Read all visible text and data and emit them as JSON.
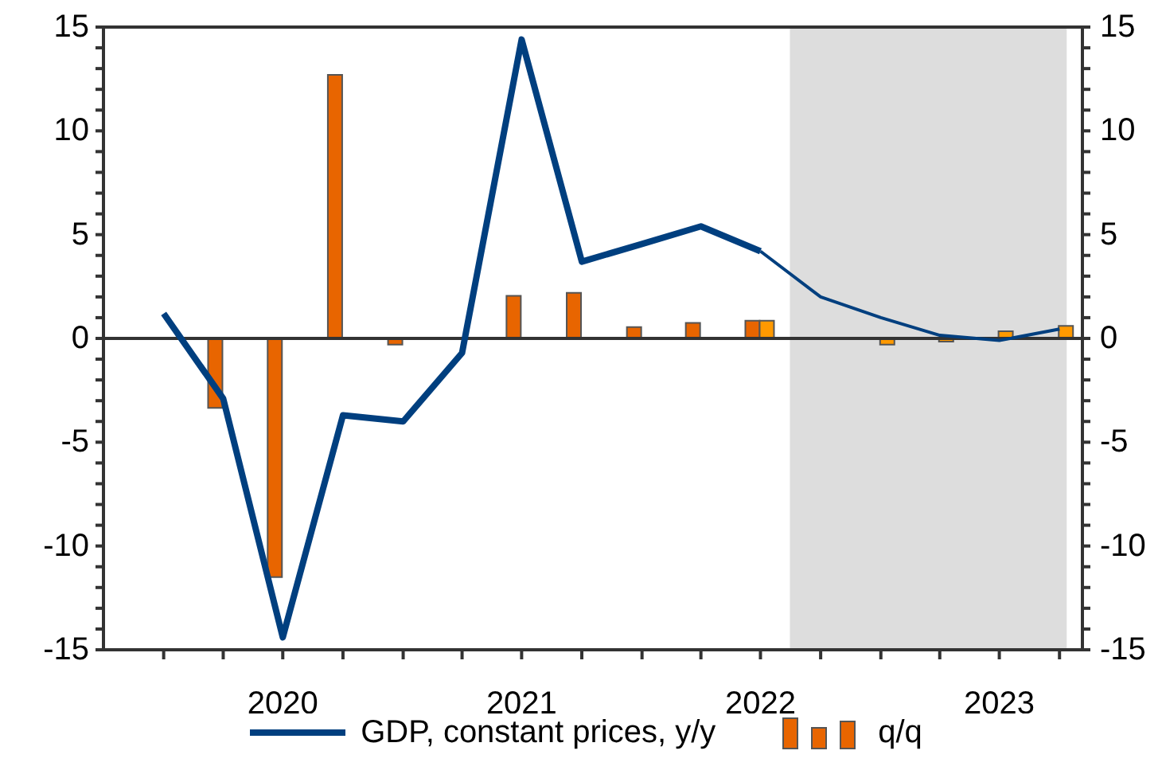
{
  "chart_data": {
    "type": "bar",
    "x": [
      "2020-01",
      "2020-04",
      "2020-07",
      "2020-10",
      "2021-01",
      "2021-04",
      "2021-07",
      "2021-10",
      "2022-01",
      "2022-04",
      "2022-07",
      "2022-10",
      "2023-01",
      "2023-04",
      "2023-07",
      "2023-10"
    ],
    "series": [
      {
        "type": "line",
        "name": "GDP, constant prices, y/y",
        "color": "#003f7f",
        "values": [
          1.2,
          -2.9,
          -14.4,
          -3.7,
          -4.0,
          -0.7,
          14.4,
          3.7,
          4.55,
          5.4,
          4.2,
          null,
          null,
          null,
          null,
          null
        ]
      },
      {
        "type": "line",
        "color": "#003f7f",
        "values": [
          null,
          null,
          null,
          null,
          null,
          null,
          null,
          null,
          null,
          null,
          4.2,
          2.0,
          1.0,
          0.15,
          -0.1,
          0.45
        ]
      },
      {
        "name": "q/q",
        "color": "#e86500",
        "values": [
          null,
          -3.35,
          -11.5,
          12.7,
          -0.3,
          null,
          2.05,
          2.2,
          0.55,
          0.75,
          0.85,
          null,
          null,
          null,
          null,
          null
        ]
      },
      {
        "color": "#ff9900",
        "values": [
          null,
          null,
          null,
          null,
          null,
          null,
          null,
          null,
          null,
          null,
          0.85,
          null,
          -0.3,
          -0.15,
          0.35,
          0.6
        ]
      }
    ],
    "xlim": [
      "2019-10-01",
      "2023-11-05"
    ],
    "xticks": [
      {
        "value": "2020-01",
        "label": null
      },
      {
        "value": "2020-04",
        "label": null
      },
      {
        "value": "2020-07",
        "label": "2020"
      },
      {
        "value": "2020-10",
        "label": null
      },
      {
        "value": "2021-01",
        "label": null
      },
      {
        "value": "2021-04",
        "label": null
      },
      {
        "value": "2021-07",
        "label": "2021"
      },
      {
        "value": "2021-10",
        "label": null
      },
      {
        "value": "2022-01",
        "label": null
      },
      {
        "value": "2022-04",
        "label": null
      },
      {
        "value": "2022-07",
        "label": "2022"
      },
      {
        "value": "2022-10",
        "label": null
      },
      {
        "value": "2023-01",
        "label": null
      },
      {
        "value": "2023-04",
        "label": null
      },
      {
        "value": "2023-07",
        "label": "2023"
      },
      {
        "value": "2023-10",
        "label": null
      }
    ],
    "ylim": [
      -15,
      15
    ],
    "yticks": [
      -15,
      {
        "value": -14,
        "label": null
      },
      {
        "value": -13,
        "label": null
      },
      {
        "value": -12,
        "label": null
      },
      {
        "value": -11,
        "label": null
      },
      -10,
      {
        "value": -9,
        "label": null
      },
      {
        "value": -8,
        "label": null
      },
      {
        "value": -7,
        "label": null
      },
      {
        "value": -6,
        "label": null
      },
      -5,
      {
        "value": -4,
        "label": null
      },
      {
        "value": -3,
        "label": null
      },
      {
        "value": -2,
        "label": null
      },
      {
        "value": -1,
        "label": null
      },
      0,
      {
        "value": 1,
        "label": null
      },
      {
        "value": 2,
        "label": null
      },
      {
        "value": 3,
        "label": null
      },
      {
        "value": 4,
        "label": null
      },
      5,
      {
        "value": 6,
        "label": null
      },
      {
        "value": 7,
        "label": null
      },
      {
        "value": 8,
        "label": null
      },
      {
        "value": 9,
        "label": null
      },
      10,
      {
        "value": 11,
        "label": null
      },
      {
        "value": 12,
        "label": null
      },
      {
        "value": 13,
        "label": null
      },
      {
        "value": 14,
        "label": null
      },
      15
    ],
    "y2lim": [
      -15,
      15
    ],
    "y2ticks": [
      -15,
      {
        "value": -14,
        "label": null
      },
      {
        "value": -13,
        "label": null
      },
      {
        "value": -12,
        "label": null
      },
      {
        "value": -11,
        "label": null
      },
      -10,
      {
        "value": -9,
        "label": null
      },
      {
        "value": -8,
        "label": null
      },
      {
        "value": -7,
        "label": null
      },
      {
        "value": -6,
        "label": null
      },
      -5,
      {
        "value": -4,
        "label": null
      },
      {
        "value": -3,
        "label": null
      },
      {
        "value": -2,
        "label": null
      },
      {
        "value": -1,
        "label": null
      },
      0,
      {
        "value": 1,
        "label": null
      },
      {
        "value": 2,
        "label": null
      },
      {
        "value": 3,
        "label": null
      },
      {
        "value": 4,
        "label": null
      },
      5,
      {
        "value": 6,
        "label": null
      },
      {
        "value": 7,
        "label": null
      },
      {
        "value": 8,
        "label": null
      },
      {
        "value": 9,
        "label": null
      },
      10,
      {
        "value": 11,
        "label": null
      },
      {
        "value": 12,
        "label": null
      },
      {
        "value": 13,
        "label": null
      },
      {
        "value": 14,
        "label": null
      },
      15
    ],
    "bands": [
      {
        "axis": "x",
        "from": "2022-08-15",
        "to": "2023-10-12",
        "color": "#dddddd"
      }
    ],
    "ref_lines": [
      {
        "axis": "y",
        "value": 0,
        "color": "#333333"
      }
    ],
    "grid": false,
    "legend": "bottom"
  }
}
